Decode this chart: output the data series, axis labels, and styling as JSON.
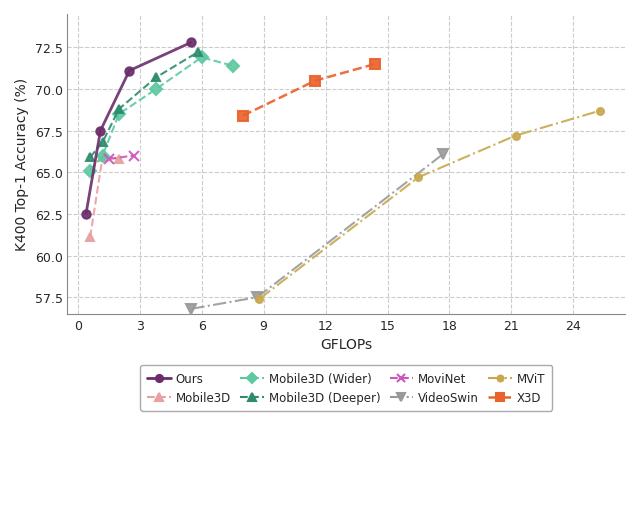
{
  "title": "",
  "xlabel": "GFLOPs",
  "ylabel": "K400 Top-1 Accuracy (%)",
  "xlim": [
    -0.5,
    26.5
  ],
  "ylim": [
    56.5,
    74.5
  ],
  "xticks": [
    0,
    3,
    6,
    9,
    12,
    15,
    18,
    21,
    24
  ],
  "yticks": [
    57.5,
    60.0,
    62.5,
    65.0,
    67.5,
    70.0,
    72.5
  ],
  "series": [
    {
      "label": "Ours",
      "x": [
        0.4,
        1.1,
        2.5,
        5.5
      ],
      "y": [
        62.5,
        67.5,
        71.1,
        72.8
      ],
      "color": "#6B2D6B",
      "linestyle": "-",
      "marker": "o",
      "markersize": 6,
      "linewidth": 2.0,
      "zorder": 5
    },
    {
      "label": "Mobile3D",
      "x": [
        0.6,
        1.2,
        2.0
      ],
      "y": [
        61.1,
        65.9,
        65.8
      ],
      "color": "#E8A0A0",
      "linestyle": "--",
      "marker": "^",
      "markersize": 6,
      "linewidth": 1.5,
      "zorder": 4
    },
    {
      "label": "Mobile3D (Wider)",
      "x": [
        0.6,
        1.2,
        2.0,
        3.8,
        6.0,
        7.5
      ],
      "y": [
        65.1,
        66.0,
        68.5,
        70.0,
        71.9,
        71.4
      ],
      "color": "#5DC9A0",
      "linestyle": "--",
      "marker": "D",
      "markersize": 6,
      "linewidth": 1.5,
      "zorder": 4
    },
    {
      "label": "Mobile3D (Deeper)",
      "x": [
        0.6,
        1.2,
        2.0,
        3.8,
        5.8
      ],
      "y": [
        65.9,
        66.8,
        68.8,
        70.7,
        72.2
      ],
      "color": "#2E8B6E",
      "linestyle": "--",
      "marker": "^",
      "markersize": 6,
      "linewidth": 1.5,
      "zorder": 4
    },
    {
      "label": "MoviNet",
      "x": [
        1.5,
        2.7
      ],
      "y": [
        65.8,
        66.0
      ],
      "color": "#CC55BB",
      "linestyle": "--",
      "marker": "x",
      "markersize": 7,
      "linewidth": 1.5,
      "zorder": 4
    },
    {
      "label": "VideoSwin",
      "x": [
        5.5,
        8.7,
        17.7
      ],
      "y": [
        56.8,
        57.5,
        66.1
      ],
      "color": "#999999",
      "linestyle": "-.",
      "marker": "v",
      "markersize": 7,
      "linewidth": 1.5,
      "zorder": 3
    },
    {
      "label": "MViT",
      "x": [
        8.8,
        16.5,
        21.2,
        25.3
      ],
      "y": [
        57.4,
        64.7,
        67.2,
        68.7
      ],
      "color": "#C8A84B",
      "linestyle": "-.",
      "marker": "o",
      "markersize": 5,
      "linewidth": 1.5,
      "zorder": 3
    },
    {
      "label": "X3D",
      "x": [
        8.0,
        11.5,
        14.4
      ],
      "y": [
        68.4,
        70.5,
        71.5
      ],
      "color": "#E8622A",
      "linestyle": "--",
      "marker": "s",
      "markersize": 7,
      "linewidth": 1.8,
      "zorder": 4
    }
  ],
  "background_color": "#ffffff",
  "grid_color": "#cccccc",
  "figwidth": 6.4,
  "figheight": 5.06,
  "dpi": 100
}
